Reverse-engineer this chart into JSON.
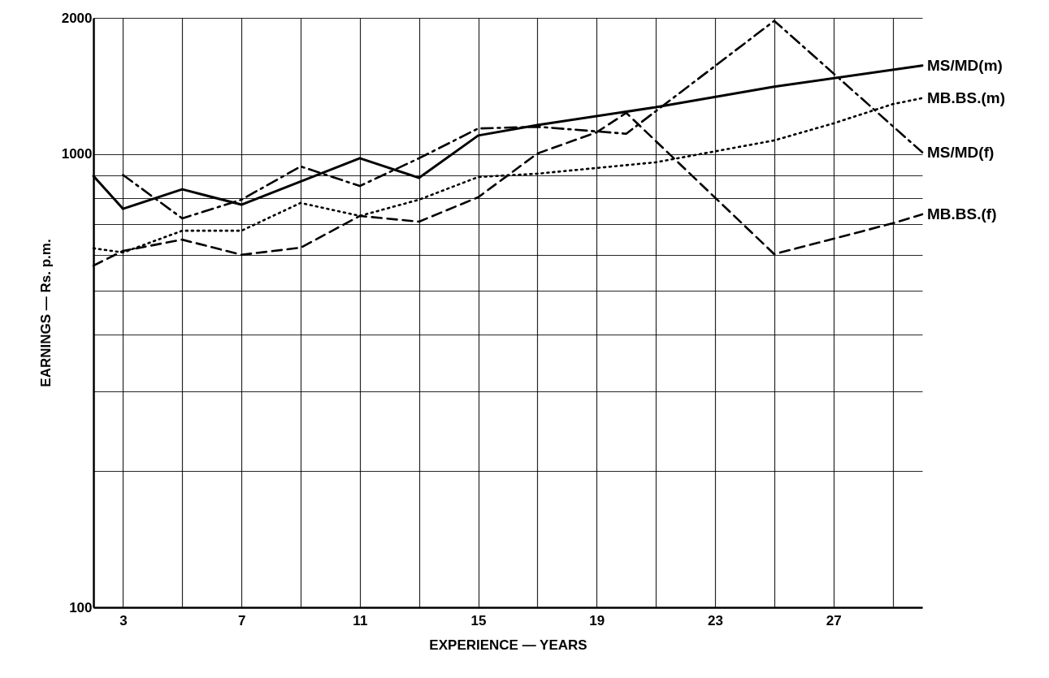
{
  "chart_data": {
    "type": "line",
    "xlabel": "EXPERIENCE — YEARS",
    "ylabel": "EARNINGS — Rs. p.m.",
    "log": true,
    "grid": true,
    "xlim": [
      2,
      30
    ],
    "ylim": [
      100,
      2000
    ],
    "xticks": [
      3,
      {
        "value": 5,
        "label": null
      },
      7,
      {
        "value": 9,
        "label": null
      },
      11,
      {
        "value": 13,
        "label": null
      },
      15,
      {
        "value": 17,
        "label": null
      },
      19,
      {
        "value": 21,
        "label": null
      },
      23,
      {
        "value": 25,
        "label": null
      },
      27,
      {
        "value": 29,
        "label": null
      }
    ],
    "yticks": [
      100,
      {
        "value": 200,
        "label": null
      },
      {
        "value": 300,
        "label": null
      },
      {
        "value": 400,
        "label": null
      },
      {
        "value": 500,
        "label": null
      },
      {
        "value": 600,
        "label": null
      },
      {
        "value": 700,
        "label": null
      },
      {
        "value": 800,
        "label": null
      },
      {
        "value": 900,
        "label": null
      },
      1000,
      2000
    ],
    "series": [
      {
        "name": "MS/MD(m)",
        "color": "#000000",
        "line_style": "solid",
        "x": [
          2,
          3,
          5,
          7,
          11,
          13,
          15,
          17,
          21,
          25,
          30
        ],
        "values": [
          895,
          758,
          837,
          774,
          980,
          887,
          1100,
          1160,
          1270,
          1410,
          1570
        ]
      },
      {
        "name": "MB.BS.(m)",
        "color": "#000000",
        "line_style": "dotted",
        "x": [
          2,
          3,
          5,
          7,
          9,
          11,
          13,
          15,
          17,
          21,
          25,
          27,
          29,
          30
        ],
        "values": [
          620,
          607,
          678,
          678,
          781,
          731,
          794,
          891,
          906,
          960,
          1073,
          1170,
          1290,
          1330
        ]
      },
      {
        "name": "MS/MD(f)",
        "color": "#000000",
        "line_style": "dashdot",
        "x": [
          3,
          5,
          7,
          9,
          11,
          13,
          15,
          17,
          20,
          25,
          30
        ],
        "values": [
          900,
          722,
          794,
          940,
          851,
          980,
          1140,
          1150,
          1110,
          1970,
          1010
        ]
      },
      {
        "name": "MB.BS.(f)",
        "color": "#000000",
        "line_style": "dashed",
        "x": [
          2,
          3,
          5,
          7,
          9,
          11,
          13,
          15,
          17,
          19,
          20,
          25,
          29,
          30
        ],
        "values": [
          568,
          612,
          648,
          600,
          622,
          731,
          710,
          804,
          1004,
          1118,
          1234,
          602,
          704,
          737
        ]
      }
    ]
  }
}
